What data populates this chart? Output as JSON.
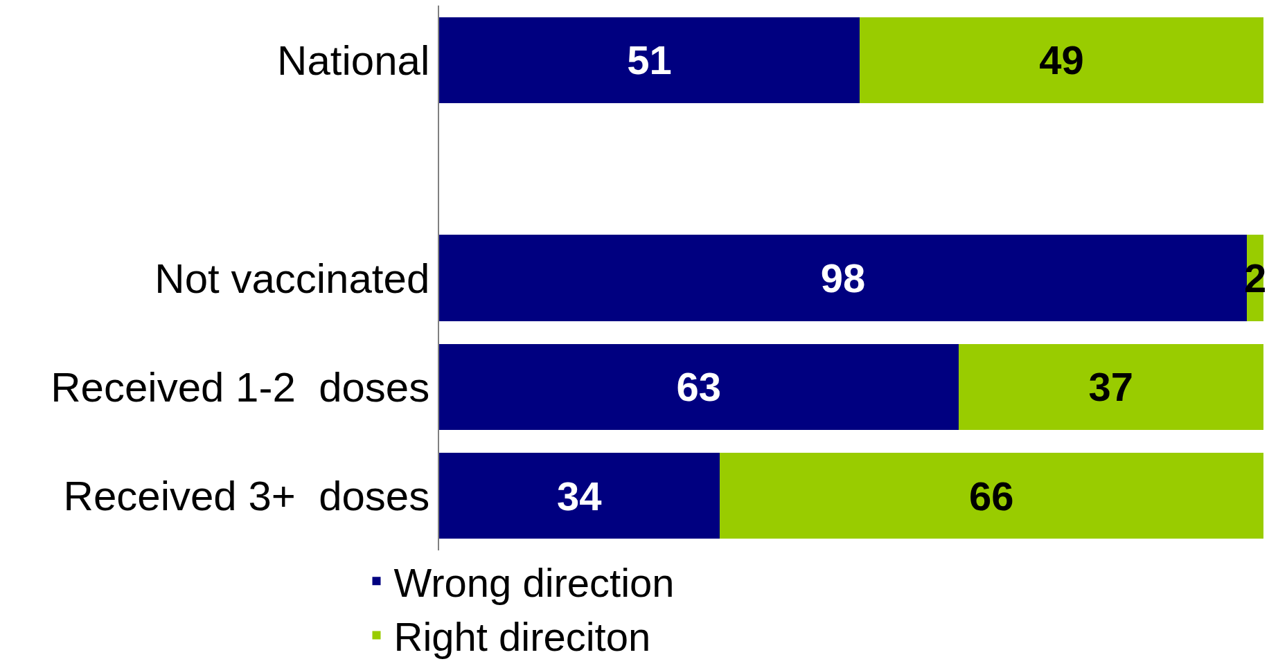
{
  "chart_data": {
    "type": "bar",
    "orientation": "horizontal",
    "stacked": true,
    "categories": [
      "National",
      null,
      "Not vaccinated",
      "Received 1-2  doses",
      "Received 3+  doses"
    ],
    "series": [
      {
        "name": "Wrong direction",
        "color": "#000080",
        "values": [
          51,
          null,
          98,
          63,
          34
        ]
      },
      {
        "name": "Right direciton",
        "color": "#99cc00",
        "values": [
          49,
          null,
          2,
          37,
          66
        ]
      }
    ],
    "xlim": [
      0,
      100
    ],
    "data_labels": true,
    "legend": "bottom",
    "grid": false,
    "tick_labels": "y"
  }
}
